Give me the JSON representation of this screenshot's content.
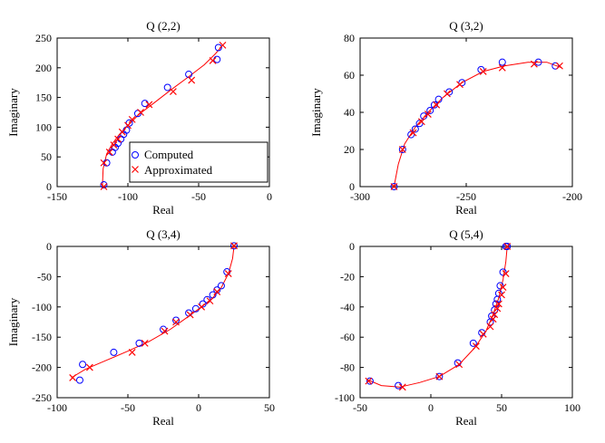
{
  "figure": {
    "legend": {
      "computed": "Computed",
      "approximated": "Approximated"
    },
    "colors": {
      "computed": "#0000ff",
      "approximated": "#ff0000",
      "curve": "#ff0000",
      "axes": "#000000"
    }
  },
  "chart_data": [
    {
      "type": "scatter",
      "title": "Q (2,2)",
      "xlabel": "Real",
      "ylabel": "Imaginary",
      "xlim": [
        -150,
        0
      ],
      "ylim": [
        0,
        250
      ],
      "xticks": [
        -150,
        -100,
        -50,
        0
      ],
      "yticks": [
        0,
        50,
        100,
        150,
        200,
        250
      ],
      "legend": "bottom-right",
      "series": [
        {
          "name": "Computed",
          "marker": "circle",
          "x": [
            -117,
            -115,
            -111,
            -109,
            -107,
            -105,
            -103,
            -101,
            -99,
            -93,
            -88,
            -72,
            -57,
            -37,
            -36
          ],
          "y": [
            3,
            40,
            58,
            66,
            73,
            80,
            88,
            95,
            107,
            123,
            140,
            167,
            189,
            214,
            234
          ]
        },
        {
          "name": "Approximated",
          "marker": "x",
          "x": [
            -117,
            -117,
            -113,
            -110,
            -107,
            -104,
            -100,
            -97,
            -91,
            -85,
            -68,
            -55,
            -40,
            -33
          ],
          "y": [
            0,
            40,
            58,
            70,
            80,
            92,
            103,
            113,
            125,
            138,
            160,
            179,
            212,
            238
          ]
        }
      ],
      "curve": {
        "x": [
          -118,
          -117.5,
          -115,
          -111,
          -106,
          -100,
          -92,
          -82,
          -70,
          -57,
          -46,
          -38,
          -33
        ],
        "y": [
          0,
          30,
          55,
          72,
          88,
          103,
          122,
          140,
          162,
          185,
          205,
          224,
          238
        ]
      }
    },
    {
      "type": "scatter",
      "title": "Q (3,2)",
      "xlabel": "Real",
      "ylabel": "Imaginary",
      "xlim": [
        -300,
        -200
      ],
      "ylim": [
        0,
        80
      ],
      "xticks": [
        -300,
        -250,
        -200
      ],
      "yticks": [
        0,
        20,
        40,
        60,
        80
      ],
      "series": [
        {
          "name": "Computed",
          "marker": "circle",
          "x": [
            -284,
            -280,
            -276,
            -274,
            -272,
            -270,
            -267,
            -265,
            -263,
            -258,
            -252,
            -243,
            -233,
            -216,
            -208
          ],
          "y": [
            0,
            20,
            28,
            31,
            34,
            38,
            41,
            44,
            47,
            51,
            56,
            63,
            67,
            67,
            65
          ]
        },
        {
          "name": "Approximated",
          "marker": "x",
          "x": [
            -284,
            -280,
            -275,
            -271,
            -268,
            -264,
            -259,
            -253,
            -242,
            -233,
            -218,
            -206
          ],
          "y": [
            0,
            20,
            29,
            35,
            39,
            44,
            50,
            55,
            62,
            64,
            66,
            65
          ]
        }
      ],
      "curve": {
        "x": [
          -284,
          -282,
          -279,
          -274,
          -268,
          -261,
          -252,
          -242,
          -232,
          -221,
          -212,
          -205
        ],
        "y": [
          0,
          12,
          23,
          32,
          40,
          48,
          56,
          62,
          65,
          67,
          67,
          64
        ]
      }
    },
    {
      "type": "scatter",
      "title": "Q (3,4)",
      "xlabel": "Real",
      "ylabel": "Imaginary",
      "xlim": [
        -100,
        50
      ],
      "ylim": [
        -250,
        0
      ],
      "xticks": [
        -100,
        -50,
        0,
        50
      ],
      "yticks": [
        -250,
        -200,
        -150,
        -100,
        -50,
        0
      ],
      "series": [
        {
          "name": "Computed",
          "marker": "circle",
          "x": [
            -84,
            -82,
            -60,
            -42,
            -25,
            -16,
            -7,
            -2,
            3,
            6,
            10,
            13,
            16,
            20,
            25
          ],
          "y": [
            -221,
            -195,
            -175,
            -160,
            -137,
            -122,
            -110,
            -103,
            -95,
            -88,
            -80,
            -72,
            -65,
            -42,
            1
          ]
        },
        {
          "name": "Approximated",
          "marker": "x",
          "x": [
            -89,
            -77,
            -47,
            -38,
            -24,
            -16,
            -6,
            2,
            8,
            13,
            21,
            25
          ],
          "y": [
            -217,
            -200,
            -175,
            -160,
            -140,
            -125,
            -113,
            -100,
            -90,
            -75,
            -45,
            1
          ]
        }
      ],
      "curve": {
        "x": [
          -90,
          -80,
          -65,
          -50,
          -35,
          -20,
          -8,
          2,
          10,
          16,
          21,
          24,
          25
        ],
        "y": [
          -217,
          -203,
          -188,
          -173,
          -157,
          -137,
          -117,
          -100,
          -85,
          -68,
          -45,
          -20,
          0
        ]
      }
    },
    {
      "type": "scatter",
      "title": "Q (5,4)",
      "xlabel": "Real",
      "ylabel": "",
      "xlim": [
        -50,
        100
      ],
      "ylim": [
        -100,
        0
      ],
      "xticks": [
        -50,
        0,
        50,
        100
      ],
      "yticks": [
        -100,
        -80,
        -60,
        -40,
        -20,
        0
      ],
      "series": [
        {
          "name": "Computed",
          "marker": "circle",
          "x": [
            -43,
            -23,
            6,
            19,
            30,
            36,
            42,
            43,
            45,
            46,
            47,
            48,
            49,
            51,
            53,
            54
          ],
          "y": [
            -89,
            -92,
            -86,
            -77,
            -64,
            -57,
            -50,
            -46,
            -42,
            -38,
            -35,
            -31,
            -26,
            -17,
            0,
            0
          ]
        },
        {
          "name": "Approximated",
          "marker": "x",
          "x": [
            -44,
            -20,
            6,
            20,
            32,
            37,
            42,
            44,
            45,
            47,
            48,
            50,
            51,
            53,
            54
          ],
          "y": [
            -89,
            -93,
            -86,
            -78,
            -66,
            -58,
            -53,
            -48,
            -45,
            -41,
            -38,
            -32,
            -27,
            -18,
            0
          ]
        }
      ],
      "curve": {
        "x": [
          -45,
          -35,
          -22,
          -8,
          6,
          20,
          31,
          39,
          44,
          48,
          51,
          53,
          54
        ],
        "y": [
          -88,
          -92,
          -93,
          -90,
          -86,
          -78,
          -67,
          -56,
          -45,
          -34,
          -22,
          -10,
          0
        ]
      }
    }
  ]
}
